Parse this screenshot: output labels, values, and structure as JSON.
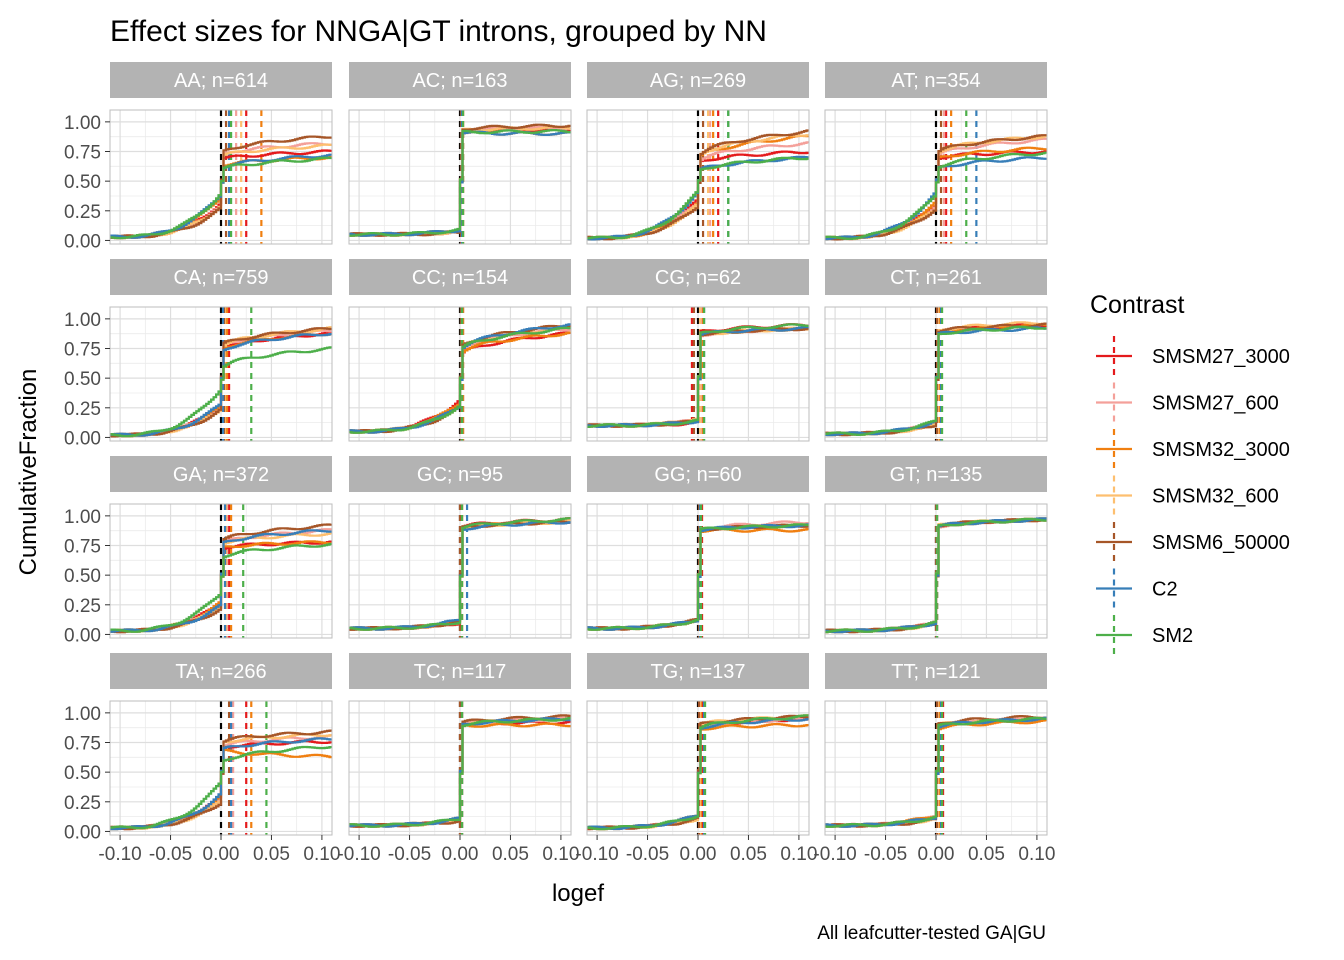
{
  "chart_data": {
    "type": "line",
    "title": "Effect sizes for NNGA|GT introns, grouped by NN",
    "xlabel": "logef",
    "ylabel": "CumulativeFraction",
    "caption": "All leafcutter-tested GA|GU",
    "xlim": [
      -0.11,
      0.11
    ],
    "ylim": [
      -0.03,
      1.1
    ],
    "x_ticks": [
      -0.1,
      -0.05,
      0.0,
      0.05,
      0.1
    ],
    "x_tick_labels": [
      "-0.10",
      "-0.05",
      "0.00",
      "0.05",
      "0.10"
    ],
    "y_ticks": [
      0,
      0.25,
      0.5,
      0.75,
      1.0
    ],
    "y_tick_labels": [
      "0.00",
      "0.25",
      "0.50",
      "0.75",
      "1.00"
    ],
    "grid": true,
    "legend": {
      "title": "Contrast",
      "position": "right",
      "entries": [
        "SMSM27_3000",
        "SMSM27_600",
        "SMSM32_3000",
        "SMSM32_600",
        "SMSM6_50000",
        "C2",
        "SM2"
      ]
    },
    "series_colors": {
      "SMSM27_3000": "#E41A1C",
      "SMSM27_600": "#F4A09A",
      "SMSM32_3000": "#F07F10",
      "SMSM32_600": "#FDBF6F",
      "SMSM6_50000": "#A65628",
      "C2": "#377EB8",
      "SM2": "#4DAF4A"
    },
    "zero_line_color": "#000000",
    "panels": [
      {
        "label": "AA; n=614",
        "y_at_xmin": 0.03,
        "y_at_xmax": [
          0.75,
          0.82,
          0.7,
          0.8,
          0.88,
          0.72,
          0.69
        ],
        "jump": [
          0.35,
          0.42,
          0.25,
          0.4,
          0.45,
          0.2,
          0.18
        ],
        "medians": [
          0.025,
          0.015,
          0.04,
          0.02,
          0.005,
          0.008,
          0.01
        ]
      },
      {
        "label": "AC; n=163",
        "y_at_xmin": 0.05,
        "y_at_xmax": [
          0.93,
          0.95,
          0.9,
          0.95,
          0.97,
          0.9,
          0.92
        ],
        "jump": [
          0.85,
          0.85,
          0.82,
          0.85,
          0.87,
          0.82,
          0.82
        ],
        "medians": [
          0.003,
          0.002,
          0.003,
          0.002,
          0.001,
          0.002,
          0.003
        ]
      },
      {
        "label": "AG; n=269",
        "y_at_xmin": 0.02,
        "y_at_xmax": [
          0.75,
          0.82,
          0.88,
          0.9,
          0.92,
          0.7,
          0.7
        ],
        "jump": [
          0.3,
          0.32,
          0.35,
          0.38,
          0.4,
          0.15,
          0.15
        ],
        "medians": [
          0.02,
          0.012,
          0.015,
          0.01,
          0.005,
          0.03,
          0.03
        ]
      },
      {
        "label": "AT; n=354",
        "y_at_xmin": 0.02,
        "y_at_xmax": [
          0.75,
          0.85,
          0.78,
          0.88,
          0.88,
          0.7,
          0.74
        ],
        "jump": [
          0.38,
          0.4,
          0.35,
          0.45,
          0.45,
          0.18,
          0.2
        ],
        "medians": [
          0.01,
          0.008,
          0.015,
          0.005,
          0.005,
          0.04,
          0.03
        ]
      },
      {
        "label": "CA; n=759",
        "y_at_xmin": 0.02,
        "y_at_xmax": [
          0.88,
          0.9,
          0.88,
          0.92,
          0.92,
          0.88,
          0.75
        ],
        "jump": [
          0.45,
          0.48,
          0.45,
          0.5,
          0.52,
          0.42,
          0.15
        ],
        "medians": [
          0.008,
          0.005,
          0.006,
          0.004,
          0.003,
          0.002,
          0.03
        ]
      },
      {
        "label": "CC; n=154",
        "y_at_xmin": 0.05,
        "y_at_xmax": [
          0.88,
          0.92,
          0.88,
          0.93,
          0.95,
          0.95,
          0.92
        ],
        "jump": [
          0.35,
          0.45,
          0.4,
          0.45,
          0.48,
          0.45,
          0.45
        ],
        "medians": [
          0.003,
          0.002,
          0.003,
          0.001,
          0.001,
          0.002,
          0.002
        ]
      },
      {
        "label": "CG; n=62",
        "y_at_xmin": 0.1,
        "y_at_xmax": [
          0.95,
          0.92,
          0.92,
          0.92,
          0.92,
          0.92,
          0.95
        ],
        "jump": [
          0.75,
          0.7,
          0.7,
          0.7,
          0.72,
          0.72,
          0.72
        ],
        "medians": [
          -0.006,
          0.004,
          0.005,
          0.002,
          -0.004,
          0.006,
          0.006
        ]
      },
      {
        "label": "CT; n=261",
        "y_at_xmin": 0.03,
        "y_at_xmax": [
          0.95,
          0.95,
          0.95,
          0.97,
          0.95,
          0.92,
          0.93
        ],
        "jump": [
          0.75,
          0.75,
          0.75,
          0.78,
          0.78,
          0.72,
          0.72
        ],
        "medians": [
          0.003,
          0.002,
          0.004,
          0.002,
          0.001,
          0.005,
          0.006
        ]
      },
      {
        "label": "GA; n=372",
        "y_at_xmin": 0.03,
        "y_at_xmax": [
          0.78,
          0.88,
          0.78,
          0.85,
          0.92,
          0.88,
          0.76
        ],
        "jump": [
          0.45,
          0.5,
          0.45,
          0.52,
          0.55,
          0.5,
          0.28
        ],
        "medians": [
          0.008,
          0.006,
          0.01,
          0.005,
          0.004,
          0.004,
          0.022
        ]
      },
      {
        "label": "GC; n=95",
        "y_at_xmin": 0.05,
        "y_at_xmax": [
          0.97,
          0.95,
          0.95,
          0.95,
          0.95,
          0.95,
          0.97
        ],
        "jump": [
          0.8,
          0.78,
          0.78,
          0.78,
          0.78,
          0.75,
          0.78
        ],
        "medians": [
          0.002,
          0.001,
          0.002,
          0.001,
          0.0,
          0.007,
          0.002
        ]
      },
      {
        "label": "GG; n=60",
        "y_at_xmin": 0.05,
        "y_at_xmax": [
          0.92,
          0.95,
          0.88,
          0.92,
          0.92,
          0.92,
          0.92
        ],
        "jump": [
          0.75,
          0.75,
          0.75,
          0.75,
          0.75,
          0.75,
          0.75
        ],
        "medians": [
          0.004,
          0.002,
          0.003,
          0.002,
          0.001,
          0.002,
          0.003
        ]
      },
      {
        "label": "GT; n=135",
        "y_at_xmin": 0.03,
        "y_at_xmax": [
          0.97,
          0.97,
          0.97,
          0.97,
          0.97,
          0.97,
          0.97
        ],
        "jump": [
          0.8,
          0.8,
          0.8,
          0.82,
          0.82,
          0.8,
          0.8
        ],
        "medians": [
          0.001,
          0.001,
          0.001,
          0.001,
          0.0,
          0.001,
          0.001
        ]
      },
      {
        "label": "TA; n=266",
        "y_at_xmin": 0.03,
        "y_at_xmax": [
          0.76,
          0.8,
          0.63,
          0.82,
          0.84,
          0.78,
          0.72
        ],
        "jump": [
          0.4,
          0.42,
          0.38,
          0.48,
          0.5,
          0.35,
          0.15
        ],
        "medians": [
          0.025,
          0.012,
          0.03,
          0.008,
          0.008,
          0.01,
          0.045
        ]
      },
      {
        "label": "TC; n=117",
        "y_at_xmin": 0.05,
        "y_at_xmax": [
          0.92,
          0.95,
          0.9,
          0.95,
          0.97,
          0.95,
          0.95
        ],
        "jump": [
          0.8,
          0.8,
          0.78,
          0.8,
          0.82,
          0.78,
          0.78
        ],
        "medians": [
          0.002,
          0.001,
          0.002,
          0.001,
          0.0,
          0.002,
          0.002
        ]
      },
      {
        "label": "TG; n=137",
        "y_at_xmin": 0.03,
        "y_at_xmax": [
          0.95,
          0.95,
          0.9,
          0.97,
          0.97,
          0.95,
          0.97
        ],
        "jump": [
          0.75,
          0.75,
          0.72,
          0.78,
          0.78,
          0.72,
          0.72
        ],
        "medians": [
          0.004,
          0.002,
          0.003,
          0.002,
          0.001,
          0.006,
          0.007
        ]
      },
      {
        "label": "TT; n=121",
        "y_at_xmin": 0.05,
        "y_at_xmax": [
          0.95,
          0.95,
          0.93,
          0.95,
          0.97,
          0.95,
          0.95
        ],
        "jump": [
          0.75,
          0.75,
          0.72,
          0.78,
          0.8,
          0.75,
          0.75
        ],
        "medians": [
          0.007,
          0.002,
          0.004,
          0.002,
          0.001,
          0.005,
          0.006
        ]
      }
    ]
  }
}
